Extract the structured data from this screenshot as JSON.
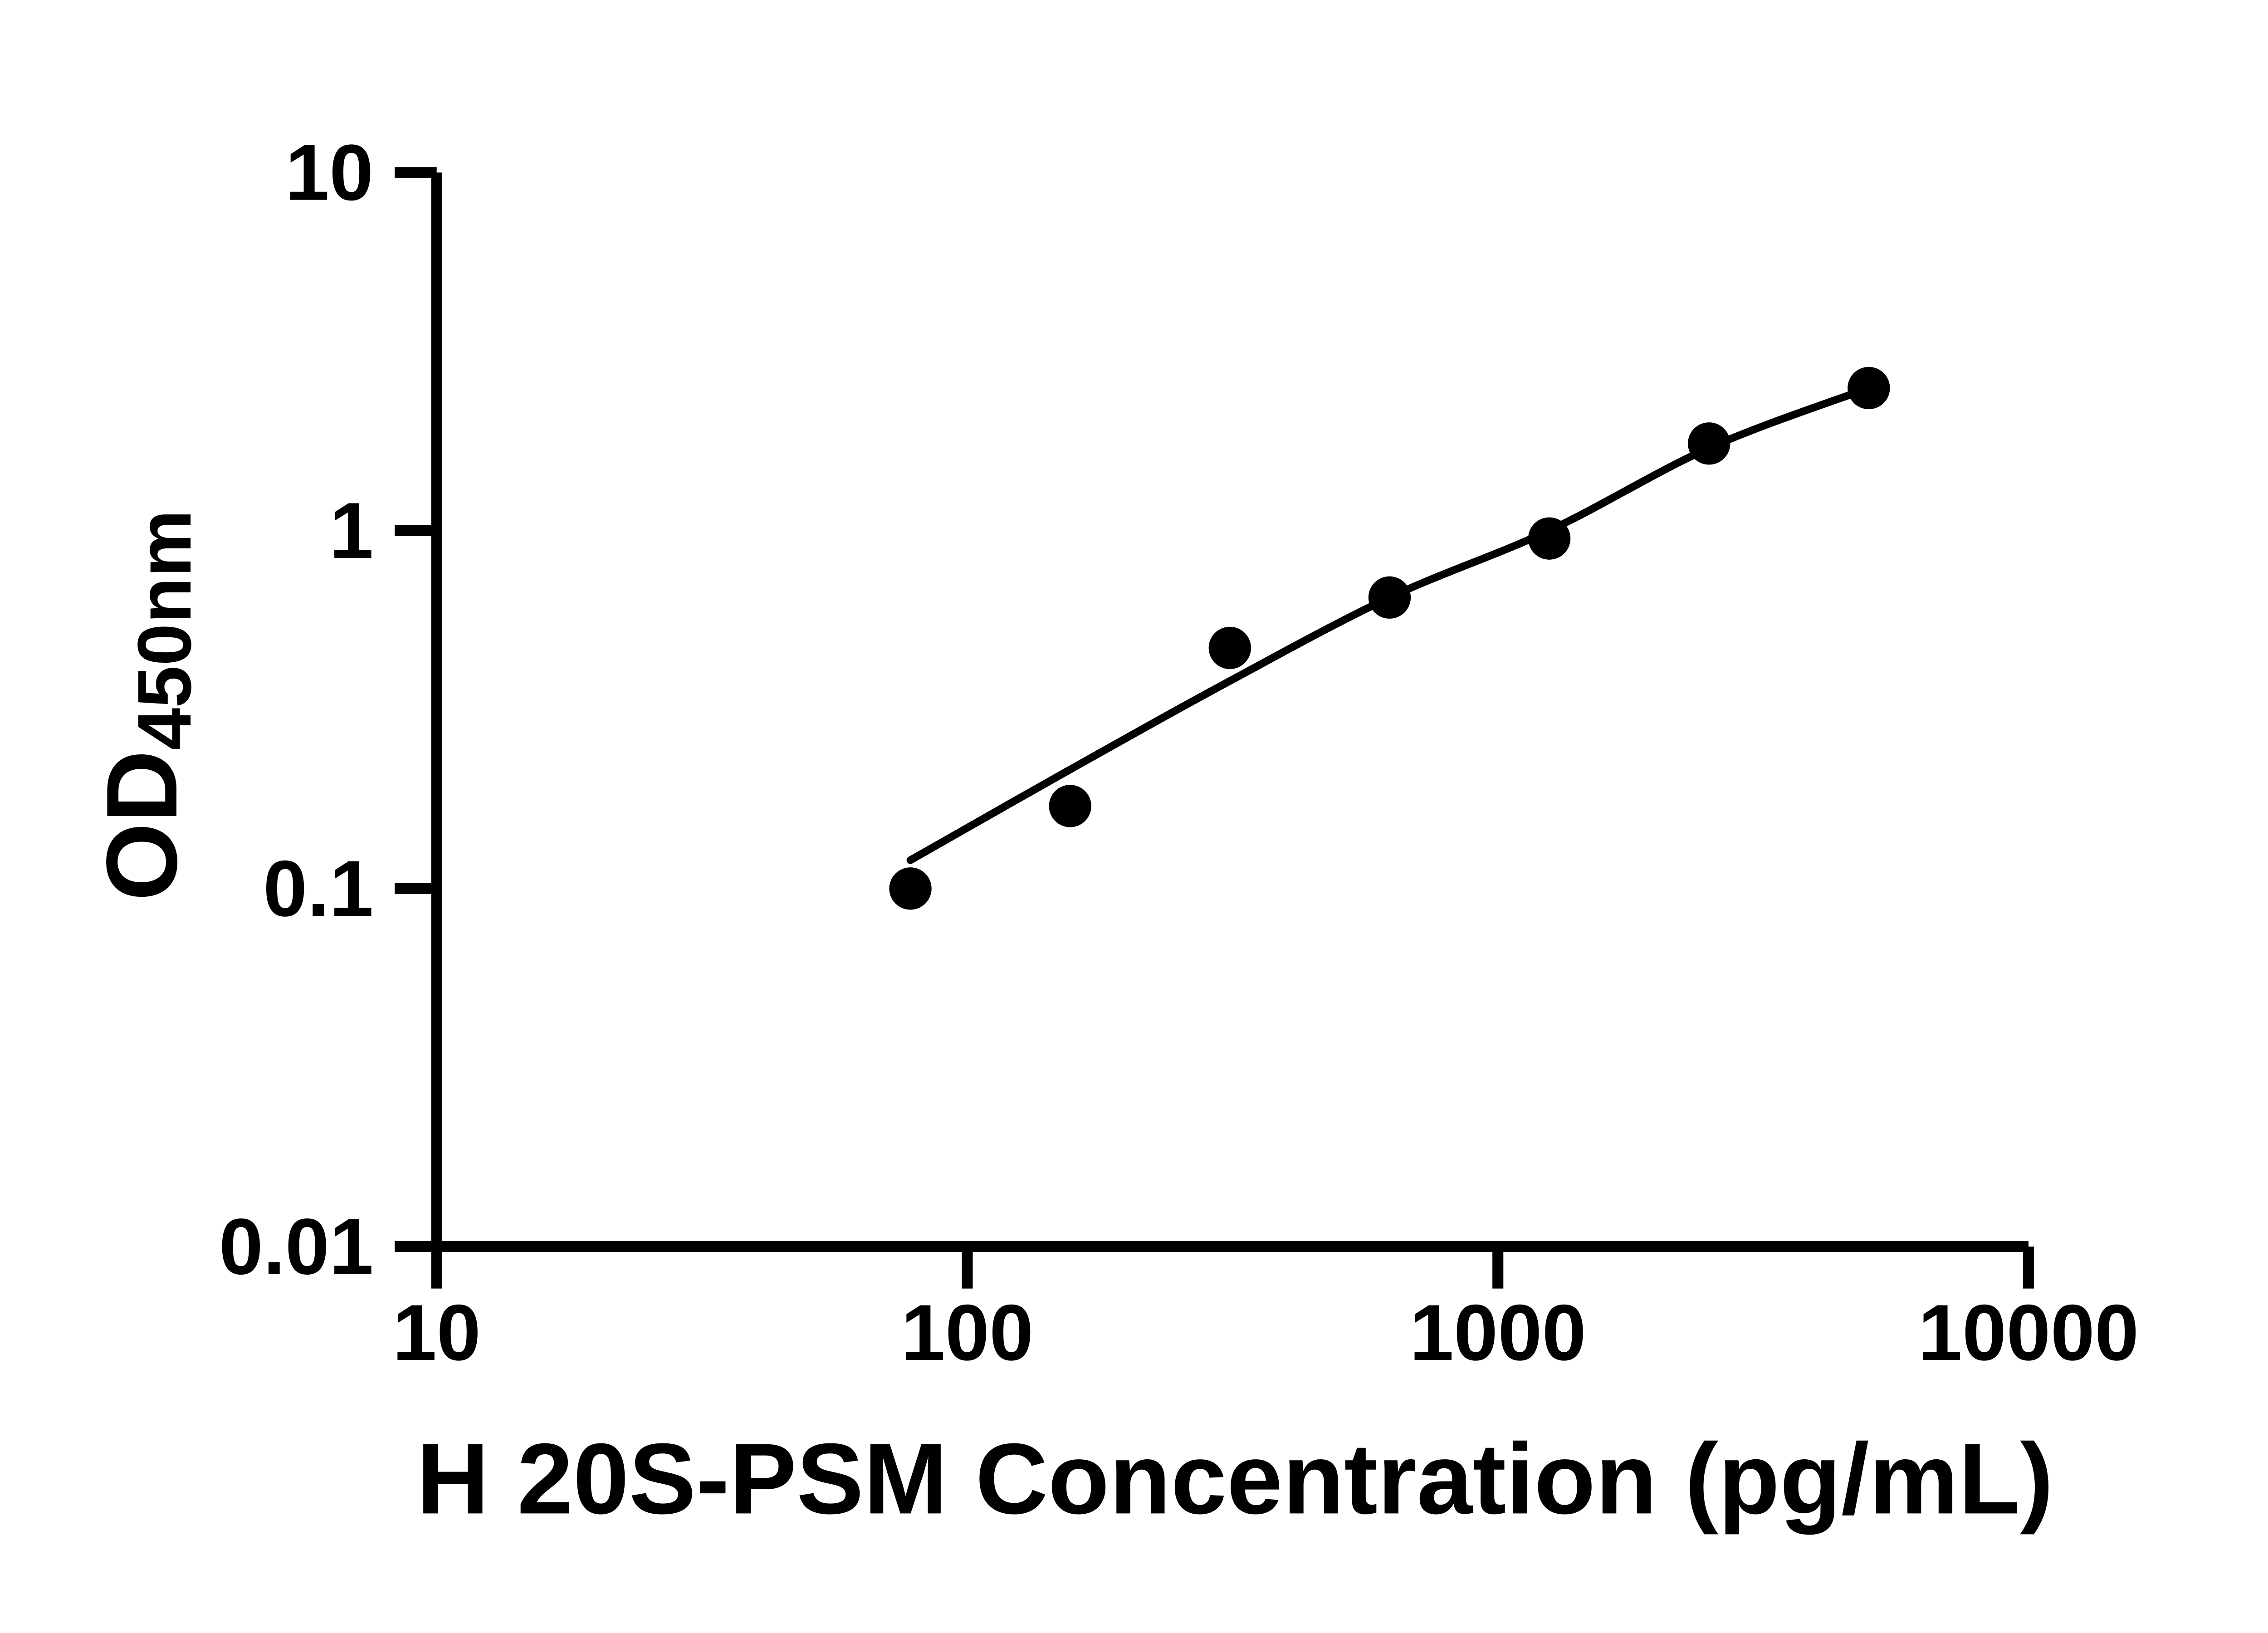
{
  "figure": {
    "background_color": "#ffffff",
    "foreground_color": "#000000"
  },
  "chart_data": {
    "type": "scatter",
    "title": "",
    "xlabel": "H 20S-PSM Concentration (pg/mL)",
    "ylabel_main": "OD",
    "ylabel_sub": "450nm",
    "x_scale": "log",
    "y_scale": "log",
    "xlim": [
      10,
      10000
    ],
    "ylim": [
      0.01,
      10
    ],
    "x_tick_labels": [
      "10",
      "100",
      "1000",
      "10000"
    ],
    "x_tick_values": [
      10,
      100,
      1000,
      10000
    ],
    "y_tick_labels": [
      "10",
      "1",
      "0.1",
      "0.01"
    ],
    "y_tick_values": [
      10,
      1,
      0.1,
      0.01
    ],
    "grid": false,
    "legend": null,
    "marker_color": "#000000",
    "line_color": "#000000",
    "series": [
      {
        "name": "standard-points",
        "type": "scatter",
        "marker": "filled-circle",
        "x": [
          78.125,
          156.25,
          312.5,
          625,
          1250,
          2500,
          5000
        ],
        "y": [
          0.1,
          0.17,
          0.47,
          0.65,
          0.95,
          1.75,
          2.5
        ]
      },
      {
        "name": "fit-line",
        "type": "line",
        "x": [
          78.125,
          156.25,
          312.5,
          625,
          1250,
          2500,
          5000
        ],
        "y": [
          0.12,
          0.215,
          0.38,
          0.65,
          1.0,
          1.7,
          2.5
        ]
      }
    ]
  }
}
